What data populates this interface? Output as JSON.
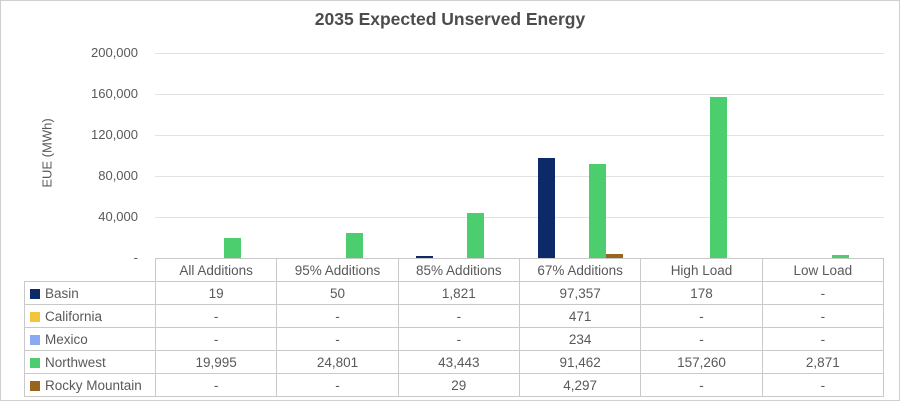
{
  "chart_data": {
    "type": "bar",
    "title": "2035 Expected Unserved Energy",
    "ylabel": "EUE (MWh)",
    "ylim": [
      0,
      200000
    ],
    "ytick_labels": [
      "200,000",
      "160,000",
      "120,000",
      "80,000",
      "40,000",
      "-"
    ],
    "grid": true,
    "legend_position": "data-table-left",
    "categories": [
      "All Additions",
      "95% Additions",
      "85% Additions",
      "67% Additions",
      "High Load",
      "Low Load"
    ],
    "series": [
      {
        "name": "Basin",
        "color": "#0d2a68",
        "values": [
          19,
          50,
          1821,
          97357,
          178,
          null
        ],
        "display": [
          "19",
          "50",
          "1,821",
          "97,357",
          "178",
          "-"
        ]
      },
      {
        "name": "California",
        "color": "#f2c53d",
        "values": [
          null,
          null,
          null,
          471,
          null,
          null
        ],
        "display": [
          "-",
          "-",
          "-",
          "471",
          "-",
          "-"
        ]
      },
      {
        "name": "Mexico",
        "color": "#8aa9f2",
        "values": [
          null,
          null,
          null,
          234,
          null,
          null
        ],
        "display": [
          "-",
          "-",
          "-",
          "234",
          "-",
          "-"
        ]
      },
      {
        "name": "Northwest",
        "color": "#4ccd6e",
        "values": [
          19995,
          24801,
          43443,
          91462,
          157260,
          2871
        ],
        "display": [
          "19,995",
          "24,801",
          "43,443",
          "91,462",
          "157,260",
          "2,871"
        ]
      },
      {
        "name": "Rocky Mountain",
        "color": "#96661f",
        "values": [
          null,
          null,
          29,
          4297,
          null,
          null
        ],
        "display": [
          "-",
          "-",
          "29",
          "4,297",
          "-",
          "-"
        ]
      }
    ]
  }
}
